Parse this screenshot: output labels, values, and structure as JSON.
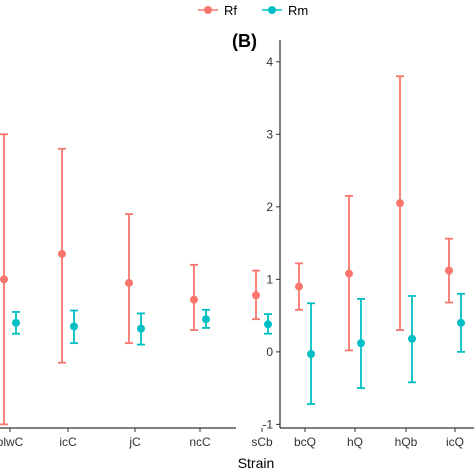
{
  "legend": {
    "items": [
      {
        "label": "Rf",
        "color": "#F8766D"
      },
      {
        "label": "Rm",
        "color": "#00BFC4"
      }
    ],
    "placement": "top"
  },
  "xlabel": "Strain",
  "panel_b_tag": "(B)",
  "chart_data": [
    {
      "type": "scatter",
      "subtype": "point-range",
      "panel": "A",
      "tag": "",
      "categories": [
        "blwC",
        "icC",
        "jC",
        "ncC",
        "sCb"
      ],
      "xlabel": "Strain",
      "ylabel": "",
      "ylim": [
        -1.05,
        4.3
      ],
      "yticks": [],
      "grid": false,
      "series": [
        {
          "name": "Rf",
          "color": "#F8766D",
          "values": [
            1.0,
            1.35,
            0.95,
            0.72,
            0.78
          ],
          "lower": [
            -1.0,
            -0.15,
            0.12,
            0.3,
            0.45
          ],
          "upper": [
            3.0,
            2.8,
            1.9,
            1.2,
            1.12
          ]
        },
        {
          "name": "Rm",
          "color": "#00BFC4",
          "values": [
            0.4,
            0.35,
            0.32,
            0.45,
            0.38
          ],
          "lower": [
            0.25,
            0.12,
            0.1,
            0.33,
            0.25
          ],
          "upper": [
            0.55,
            0.57,
            0.53,
            0.58,
            0.52
          ]
        }
      ]
    },
    {
      "type": "scatter",
      "subtype": "point-range",
      "panel": "B",
      "tag": "(B)",
      "categories": [
        "bcQ",
        "hQ",
        "hQb",
        "icQ"
      ],
      "xlabel": "Strain",
      "ylabel": "",
      "ylim": [
        -1.05,
        4.3
      ],
      "yticks": [
        -1,
        0,
        1,
        2,
        3,
        4
      ],
      "grid": false,
      "series": [
        {
          "name": "Rf",
          "color": "#F8766D",
          "values": [
            0.9,
            1.08,
            2.05,
            1.12
          ],
          "lower": [
            0.58,
            0.02,
            0.3,
            0.68
          ],
          "upper": [
            1.22,
            2.15,
            3.8,
            1.56
          ]
        },
        {
          "name": "Rm",
          "color": "#00BFC4",
          "values": [
            -0.03,
            0.12,
            0.18,
            0.4
          ],
          "lower": [
            -0.72,
            -0.5,
            -0.42,
            0.0
          ],
          "upper": [
            0.67,
            0.73,
            0.77,
            0.8
          ]
        }
      ]
    }
  ]
}
